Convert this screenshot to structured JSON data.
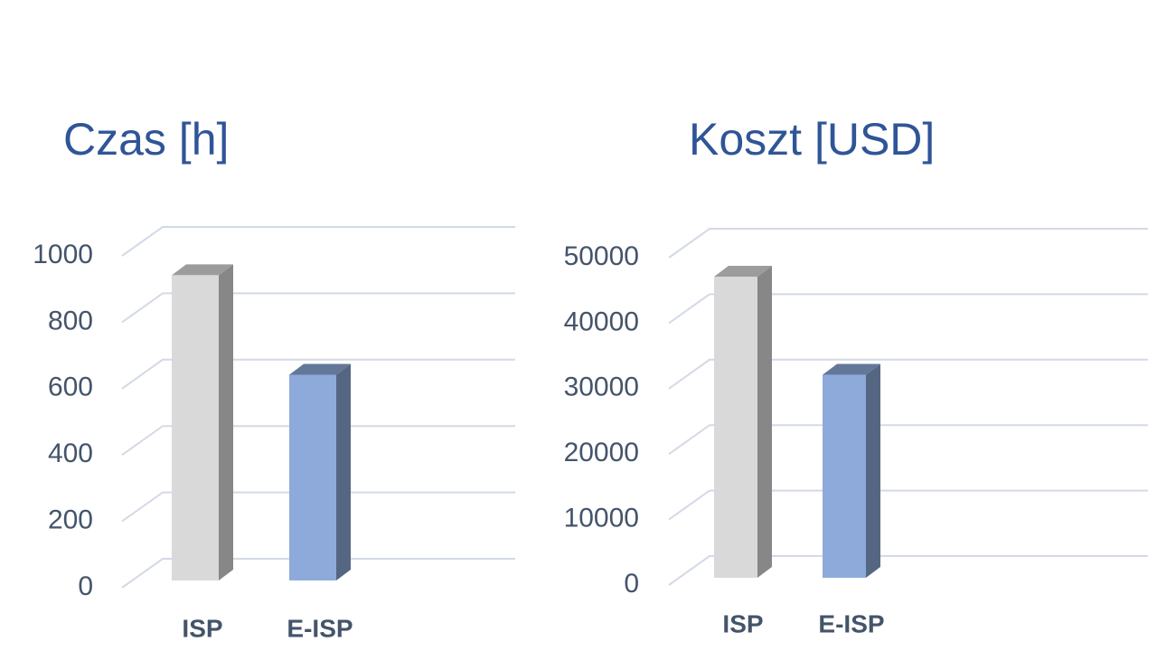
{
  "chart_data": [
    {
      "type": "bar",
      "title": "Czas [h]",
      "categories": [
        "ISP",
        "E-ISP"
      ],
      "values": [
        920,
        620
      ],
      "colors": [
        "#d9d9d9",
        "#8eaadb"
      ],
      "ylim": [
        0,
        1000
      ],
      "yticks": [
        0,
        200,
        400,
        600,
        800,
        1000
      ],
      "grid": true
    },
    {
      "type": "bar",
      "title": "Koszt [USD]",
      "categories": [
        "ISP",
        "E-ISP"
      ],
      "values": [
        46000,
        31000
      ],
      "colors": [
        "#d9d9d9",
        "#8eaadb"
      ],
      "ylim": [
        0,
        50000
      ],
      "yticks": [
        0,
        10000,
        20000,
        30000,
        40000,
        50000
      ],
      "grid": true
    }
  ]
}
